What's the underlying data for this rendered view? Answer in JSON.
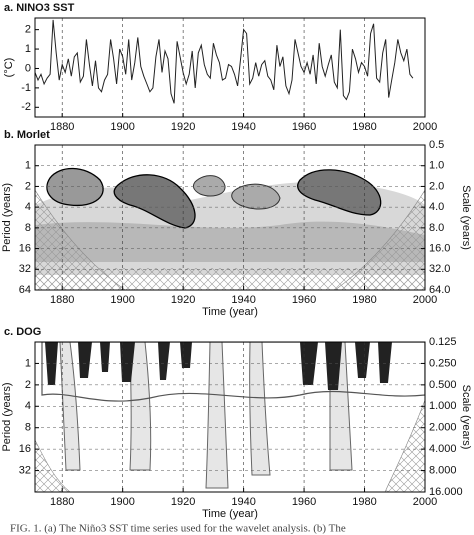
{
  "chart_data": [
    {
      "type": "line",
      "title": "a. NINO3 SST",
      "ylabel": "(°C)",
      "color": "#222222",
      "grid": true,
      "x": [
        1871,
        1872,
        1873,
        1874,
        1875,
        1876,
        1877,
        1878,
        1879,
        1880,
        1881,
        1882,
        1883,
        1884,
        1885,
        1886,
        1887,
        1888,
        1889,
        1890,
        1891,
        1892,
        1893,
        1894,
        1895,
        1896,
        1897,
        1898,
        1899,
        1900,
        1901,
        1902,
        1903,
        1904,
        1905,
        1906,
        1907,
        1908,
        1909,
        1910,
        1911,
        1912,
        1913,
        1914,
        1915,
        1916,
        1917,
        1918,
        1919,
        1920,
        1921,
        1922,
        1923,
        1924,
        1925,
        1926,
        1927,
        1928,
        1929,
        1930,
        1931,
        1932,
        1933,
        1934,
        1935,
        1936,
        1937,
        1938,
        1939,
        1940,
        1941,
        1942,
        1943,
        1944,
        1945,
        1946,
        1947,
        1948,
        1949,
        1950,
        1951,
        1952,
        1953,
        1954,
        1955,
        1956,
        1957,
        1958,
        1959,
        1960,
        1961,
        1962,
        1963,
        1964,
        1965,
        1966,
        1967,
        1968,
        1969,
        1970,
        1971,
        1972,
        1973,
        1974,
        1975,
        1976,
        1977,
        1978,
        1979,
        1980,
        1981,
        1982,
        1983,
        1984,
        1985,
        1986,
        1987,
        1988,
        1989,
        1990,
        1991,
        1992,
        1993,
        1994,
        1995,
        1996
      ],
      "values": [
        -0.2,
        -0.6,
        -0.3,
        -0.8,
        -0.5,
        -0.3,
        2.5,
        0.8,
        -0.6,
        0.2,
        -0.2,
        0.5,
        -0.4,
        0.6,
        0.8,
        -0.7,
        -0.4,
        1.5,
        0.2,
        -0.9,
        0.4,
        -1.0,
        -1.2,
        -0.6,
        -0.3,
        1.5,
        0.5,
        -0.8,
        1.0,
        0.6,
        -0.3,
        1.5,
        -0.6,
        0.3,
        1.6,
        0.1,
        -0.4,
        -0.8,
        -1.2,
        -1.0,
        0.6,
        1.5,
        -0.2,
        0.9,
        0.5,
        -1.3,
        -1.8,
        1.4,
        0.6,
        -0.2,
        -0.8,
        -0.3,
        0.9,
        -1.0,
        0.8,
        1.2,
        0.2,
        -0.3,
        -0.5,
        1.3,
        0.7,
        0.3,
        -0.6,
        -0.5,
        0.2,
        0.1,
        -0.3,
        -0.9,
        0.5,
        2.0,
        1.8,
        -0.8,
        -0.5,
        0.3,
        -0.4,
        0.2,
        0.4,
        -0.4,
        -0.6,
        -1.1,
        1.2,
        0.1,
        0.6,
        -0.9,
        -1.3,
        -0.6,
        1.5,
        0.8,
        0.1,
        -0.2,
        0.3,
        -0.3,
        0.7,
        -0.8,
        1.3,
        0.1,
        -0.4,
        0.2,
        0.7,
        -0.7,
        -1.0,
        2.0,
        -1.4,
        -1.6,
        -1.2,
        1.0,
        0.5,
        -0.2,
        0.3,
        0.1,
        -0.4,
        1.8,
        2.3,
        -0.5,
        -0.7,
        0.8,
        1.5,
        -1.5,
        -0.6,
        0.3,
        1.5,
        0.8,
        0.4,
        1.0,
        -0.3,
        -0.5
      ],
      "xlim": [
        1871,
        2000
      ],
      "xticks": [
        1880,
        1900,
        1920,
        1940,
        1960,
        1980,
        2000
      ],
      "ylim": [
        -2.5,
        2.6
      ],
      "yticks": [
        -2,
        -1,
        0,
        1,
        2
      ]
    },
    {
      "type": "contour",
      "title": "b. Morlet",
      "xlabel": "Time (year)",
      "ylabel": "Period (years)",
      "y2label": "Scale (years)",
      "grid": true,
      "log_scale": true,
      "y_inverted": true,
      "xlim": [
        1871,
        2000
      ],
      "xticks": [
        1880,
        1900,
        1920,
        1940,
        1960,
        1980,
        2000
      ],
      "ylim": [
        0.5,
        64
      ],
      "yticks": [
        1,
        2,
        4,
        8,
        16,
        32,
        64
      ],
      "y2lim": [
        0.5,
        64
      ],
      "y2ticks": [
        0.5,
        {
          "value": 1,
          "label": "1.0"
        },
        {
          "value": 2,
          "label": "2.0"
        },
        {
          "value": 4,
          "label": "4.0"
        },
        {
          "value": 8,
          "label": "8.0"
        },
        {
          "value": 16,
          "label": "16.0"
        },
        {
          "value": 32,
          "label": "32.0"
        },
        {
          "value": 64,
          "label": "64.0"
        }
      ]
    },
    {
      "type": "contour",
      "title": "c. DOG",
      "xlabel": "Time (year)",
      "ylabel": "Period (years)",
      "y2label": "Scale (years)",
      "grid": true,
      "log_scale": true,
      "y_inverted": true,
      "xlim": [
        1871,
        2000
      ],
      "xticks": [
        1880,
        1900,
        1920,
        1940,
        1960,
        1980,
        2000
      ],
      "ylim": [
        0.5,
        64
      ],
      "yticks": [
        1,
        2,
        4,
        8,
        16,
        32
      ],
      "y2lim": [
        0.125,
        16
      ],
      "y2ticks": [
        {
          "value": 0.125,
          "label": "0.125"
        },
        {
          "value": 0.25,
          "label": "0.250"
        },
        {
          "value": 0.5,
          "label": "0.500"
        },
        {
          "value": 1,
          "label": "1.000"
        },
        {
          "value": 2,
          "label": "2.000"
        },
        {
          "value": 4,
          "label": "4.000"
        },
        {
          "value": 8,
          "label": "8.000"
        },
        {
          "value": 16,
          "label": "16.000"
        }
      ]
    }
  ],
  "caption": "FIG. 1. (a) The Niño3 SST time series used for the wavelet analysis. (b) The"
}
